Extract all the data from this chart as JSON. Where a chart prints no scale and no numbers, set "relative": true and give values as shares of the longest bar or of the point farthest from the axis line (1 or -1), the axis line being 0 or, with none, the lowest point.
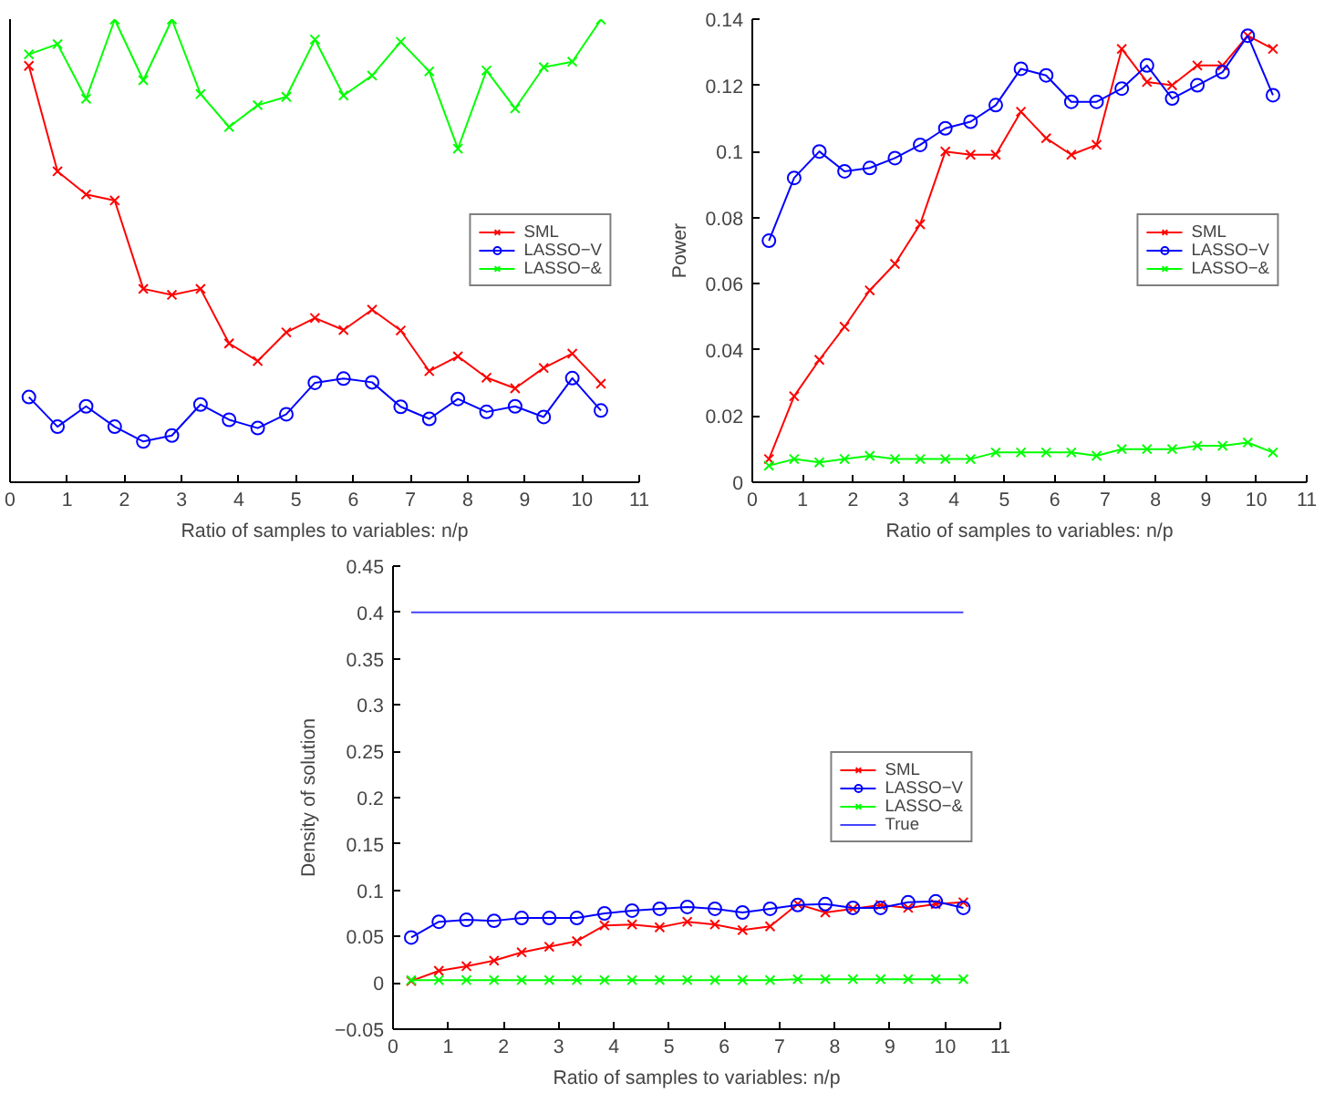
{
  "chart_data": [
    {
      "type": "line",
      "relative": true,
      "tick_labels": "x",
      "xlabel": "Ratio of samples to variables: n/p",
      "xlim": [
        0,
        11
      ],
      "xticks": [
        0,
        1,
        2,
        3,
        4,
        5,
        6,
        7,
        8,
        9,
        10,
        11
      ],
      "grid": false,
      "legend": "right",
      "x": [
        0.33,
        0.83,
        1.33,
        1.83,
        2.33,
        2.83,
        3.33,
        3.83,
        4.33,
        4.83,
        5.33,
        5.83,
        6.33,
        6.83,
        7.33,
        7.83,
        8.33,
        8.83,
        9.33,
        9.83,
        10.33
      ],
      "series": [
        {
          "name": "SML",
          "color": "#ff0000",
          "marker": "cross",
          "values": [
            0.9,
            0.672,
            0.622,
            0.609,
            0.418,
            0.405,
            0.418,
            0.3,
            0.262,
            0.324,
            0.355,
            0.329,
            0.373,
            0.328,
            0.24,
            0.272,
            0.226,
            0.203,
            0.247,
            0.278,
            0.213
          ]
        },
        {
          "name": "LASSO−V",
          "color": "#0000ff",
          "marker": "circle",
          "values": [
            0.184,
            0.12,
            0.164,
            0.12,
            0.088,
            0.101,
            0.168,
            0.135,
            0.117,
            0.147,
            0.215,
            0.224,
            0.216,
            0.163,
            0.137,
            0.18,
            0.152,
            0.164,
            0.141,
            0.225,
            0.155
          ]
        },
        {
          "name": "LASSO−&",
          "color": "#00ff00",
          "marker": "cross",
          "values": [
            0.925,
            0.947,
            0.829,
            1,
            0.869,
            1,
            0.839,
            0.768,
            0.815,
            0.833,
            0.957,
            0.836,
            0.879,
            0.952,
            0.888,
            0.721,
            0.89,
            0.808,
            0.897,
            0.909,
            1
          ]
        }
      ]
    },
    {
      "type": "line",
      "xlabel": "Ratio of samples to variables: n/p",
      "ylabel": "Power",
      "xlim": [
        0,
        11
      ],
      "xticks": [
        0,
        1,
        2,
        3,
        4,
        5,
        6,
        7,
        8,
        9,
        10,
        11
      ],
      "ylim": [
        0,
        0.14
      ],
      "yticks": [
        0,
        0.02,
        0.04,
        0.06,
        0.08,
        0.1,
        0.12,
        0.14
      ],
      "grid": false,
      "legend": "right",
      "x": [
        0.33,
        0.83,
        1.33,
        1.83,
        2.33,
        2.83,
        3.33,
        3.83,
        4.33,
        4.83,
        5.33,
        5.83,
        6.33,
        6.83,
        7.33,
        7.83,
        8.33,
        8.83,
        9.33,
        9.83,
        10.33
      ],
      "series": [
        {
          "name": "SML",
          "color": "#ff0000",
          "marker": "cross",
          "values": [
            0.007,
            0.026,
            0.037,
            0.047,
            0.058,
            0.066,
            0.078,
            0.1,
            0.099,
            0.099,
            0.112,
            0.104,
            0.099,
            0.102,
            0.131,
            0.121,
            0.12,
            0.126,
            0.126,
            0.135,
            0.131
          ]
        },
        {
          "name": "LASSO−V",
          "color": "#0000ff",
          "marker": "circle",
          "values": [
            0.073,
            0.092,
            0.1,
            0.094,
            0.095,
            0.098,
            0.102,
            0.107,
            0.109,
            0.114,
            0.125,
            0.123,
            0.115,
            0.115,
            0.119,
            0.126,
            0.116,
            0.12,
            0.124,
            0.135,
            0.117
          ]
        },
        {
          "name": "LASSO−&",
          "color": "#00ff00",
          "marker": "cross",
          "values": [
            0.005,
            0.007,
            0.006,
            0.007,
            0.008,
            0.007,
            0.007,
            0.007,
            0.007,
            0.009,
            0.009,
            0.009,
            0.009,
            0.008,
            0.01,
            0.01,
            0.01,
            0.011,
            0.011,
            0.012,
            0.009
          ]
        }
      ]
    },
    {
      "type": "line",
      "xlabel": "Ratio of samples to variables: n/p",
      "ylabel": "Density of solution",
      "xlim": [
        0,
        11
      ],
      "xticks": [
        0,
        1,
        2,
        3,
        4,
        5,
        6,
        7,
        8,
        9,
        10,
        11
      ],
      "ylim": [
        -0.05,
        0.45
      ],
      "yticks": [
        {
          "value": -0.05,
          "label": "−0.05"
        },
        0,
        0.05,
        0.1,
        0.15,
        0.2,
        0.25,
        0.3,
        0.35,
        0.4,
        0.45
      ],
      "grid": false,
      "legend": "right",
      "x": [
        0.33,
        0.83,
        1.33,
        1.83,
        2.33,
        2.83,
        3.33,
        3.83,
        4.33,
        4.83,
        5.33,
        5.83,
        6.33,
        6.83,
        7.33,
        7.83,
        8.33,
        8.83,
        9.33,
        9.83,
        10.33
      ],
      "series": [
        {
          "name": "SML",
          "color": "#ff0000",
          "marker": "cross",
          "values": [
            0.002,
            0.013,
            0.018,
            0.024,
            0.033,
            0.039,
            0.045,
            0.062,
            0.063,
            0.06,
            0.066,
            0.063,
            0.057,
            0.061,
            0.085,
            0.076,
            0.08,
            0.084,
            0.081,
            0.085,
            0.087
          ]
        },
        {
          "name": "LASSO−V",
          "color": "#0000ff",
          "marker": "circle",
          "values": [
            0.049,
            0.066,
            0.068,
            0.067,
            0.07,
            0.07,
            0.07,
            0.075,
            0.078,
            0.08,
            0.082,
            0.08,
            0.076,
            0.08,
            0.084,
            0.085,
            0.081,
            0.081,
            0.087,
            0.088,
            0.081
          ]
        },
        {
          "name": "LASSO−&",
          "color": "#00ff00",
          "marker": "cross",
          "values": [
            0.003,
            0.003,
            0.003,
            0.003,
            0.003,
            0.003,
            0.003,
            0.003,
            0.003,
            0.003,
            0.003,
            0.003,
            0.003,
            0.003,
            0.004,
            0.004,
            0.004,
            0.004,
            0.004,
            0.004,
            0.004
          ]
        },
        {
          "name": "True",
          "color": "#4444ff",
          "marker": "none",
          "x": [
            0.33,
            10.33
          ],
          "values": [
            0.4,
            0.4
          ]
        }
      ]
    }
  ]
}
